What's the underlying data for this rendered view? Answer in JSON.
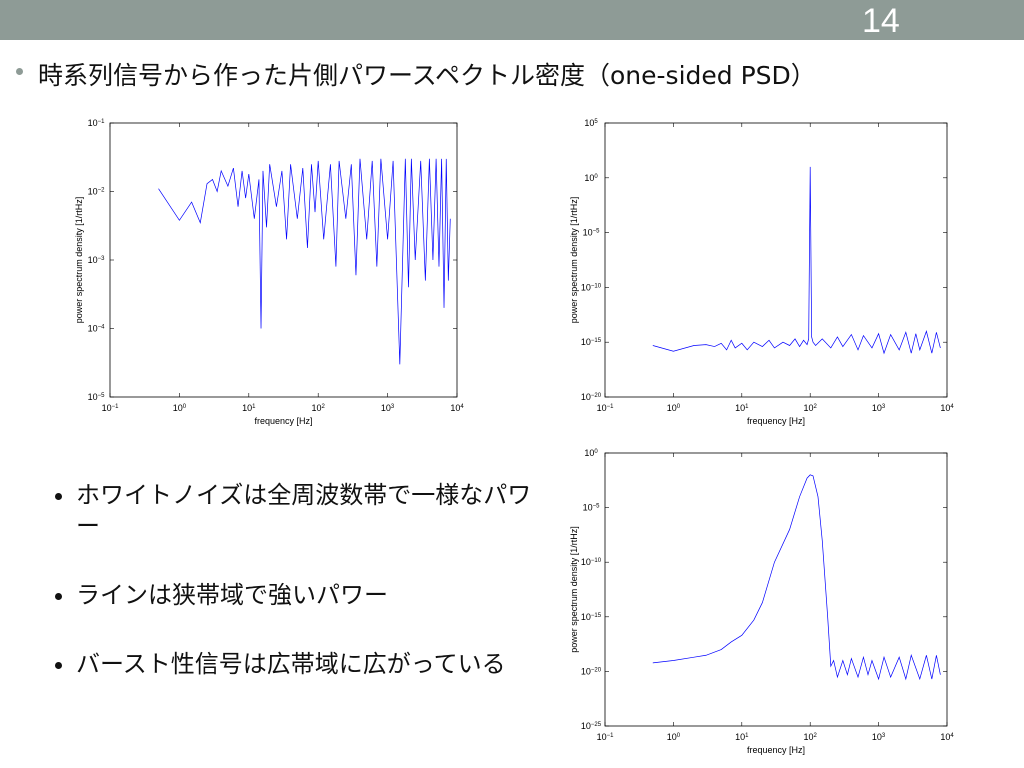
{
  "slide_number": "14",
  "title": "時系列信号から作った片側パワースペクトル密度（one-sided PSD）",
  "bullets": [
    "ホワイトノイズは全周波数帯で一様なパワー",
    "ラインは狭帯域で強いパワー",
    "バースト性信号は広帯域に広がっている"
  ],
  "chart_data": [
    {
      "type": "line",
      "xlabel": "frequency [Hz]",
      "ylabel": "power spectrum density [1/rtHz]",
      "log_x": true,
      "log_y": true,
      "color": "#0000ff",
      "xlim": [
        0.1,
        10000
      ],
      "xticks": [
        {
          "value": 0.1,
          "label": "10",
          "exponent": "−1"
        },
        {
          "value": 1,
          "label": "10",
          "exponent": "0"
        },
        {
          "value": 10,
          "label": "10",
          "exponent": "1"
        },
        {
          "value": 100,
          "label": "10",
          "exponent": "2"
        },
        {
          "value": 1000,
          "label": "10",
          "exponent": "3"
        },
        {
          "value": 10000,
          "label": "10",
          "exponent": "4"
        }
      ],
      "ylim": [
        1e-05,
        0.1
      ],
      "yticks": [
        {
          "value": 1e-05,
          "label": "10",
          "exponent": "−5"
        },
        {
          "value": 0.0001,
          "label": "10",
          "exponent": "−4"
        },
        {
          "value": 0.001,
          "label": "10",
          "exponent": "−3"
        },
        {
          "value": 0.01,
          "label": "10",
          "exponent": "−2"
        },
        {
          "value": 0.1,
          "label": "10",
          "exponent": "−1"
        }
      ],
      "x": [
        0.5,
        1,
        1.5,
        2,
        2.5,
        3,
        3.5,
        4,
        5,
        6,
        7,
        8,
        9,
        10,
        12,
        14,
        15,
        16,
        18,
        20,
        25,
        30,
        35,
        40,
        50,
        60,
        70,
        80,
        90,
        100,
        120,
        150,
        180,
        200,
        250,
        300,
        350,
        400,
        500,
        600,
        700,
        800,
        1000,
        1200,
        1500,
        1800,
        2000,
        2200,
        2500,
        3000,
        3500,
        4000,
        4500,
        5000,
        5500,
        6000,
        6500,
        7000,
        7500,
        8000
      ],
      "values": [
        0.011,
        0.0038,
        0.007,
        0.0035,
        0.013,
        0.015,
        0.01,
        0.02,
        0.012,
        0.022,
        0.006,
        0.02,
        0.008,
        0.018,
        0.004,
        0.015,
        0.0001,
        0.02,
        0.003,
        0.025,
        0.006,
        0.02,
        0.002,
        0.025,
        0.004,
        0.022,
        0.0015,
        0.025,
        0.005,
        0.028,
        0.002,
        0.025,
        0.0008,
        0.028,
        0.004,
        0.025,
        0.0006,
        0.03,
        0.002,
        0.028,
        0.0008,
        0.03,
        0.002,
        0.028,
        3e-05,
        0.03,
        0.0004,
        0.03,
        0.001,
        0.028,
        0.0005,
        0.03,
        0.001,
        0.03,
        0.0008,
        0.03,
        0.0002,
        0.03,
        0.0005,
        0.004
      ]
    },
    {
      "type": "line",
      "xlabel": "frequency [Hz]",
      "ylabel": "power spectrum density [1/rtHz]",
      "log_x": true,
      "log_y": true,
      "color": "#0000ff",
      "xlim": [
        0.1,
        10000
      ],
      "xticks": [
        {
          "value": 0.1,
          "label": "10",
          "exponent": "−1"
        },
        {
          "value": 1,
          "label": "10",
          "exponent": "0"
        },
        {
          "value": 10,
          "label": "10",
          "exponent": "1"
        },
        {
          "value": 100,
          "label": "10",
          "exponent": "2"
        },
        {
          "value": 1000,
          "label": "10",
          "exponent": "3"
        },
        {
          "value": 10000,
          "label": "10",
          "exponent": "4"
        }
      ],
      "ylim": [
        1e-20,
        100000
      ],
      "yticks": [
        {
          "value": 1e-20,
          "label": "10",
          "exponent": "−20"
        },
        {
          "value": 1e-15,
          "label": "10",
          "exponent": "−15"
        },
        {
          "value": 1e-10,
          "label": "10",
          "exponent": "−10"
        },
        {
          "value": 1e-05,
          "label": "10",
          "exponent": "−5"
        },
        {
          "value": 1,
          "label": "10",
          "exponent": "0"
        },
        {
          "value": 100000,
          "label": "10",
          "exponent": "5"
        }
      ],
      "x": [
        0.5,
        1,
        2,
        3,
        4,
        5,
        6,
        7,
        8,
        10,
        12,
        15,
        20,
        25,
        30,
        40,
        50,
        60,
        70,
        80,
        90,
        95,
        100,
        105,
        110,
        120,
        150,
        200,
        250,
        300,
        400,
        500,
        600,
        800,
        1000,
        1200,
        1500,
        2000,
        2500,
        3000,
        3500,
        4000,
        5000,
        6000,
        7000,
        8000
      ],
      "values": [
        5e-16,
        1.5e-16,
        5e-16,
        6e-16,
        4e-16,
        8e-16,
        2e-16,
        1.5e-15,
        3e-16,
        8e-16,
        2e-16,
        1e-15,
        4e-16,
        1.5e-15,
        3e-16,
        1e-15,
        5e-16,
        2e-15,
        4e-16,
        1.5e-15,
        6e-16,
        2e-15,
        10,
        3e-15,
        1e-15,
        5e-16,
        2e-15,
        3e-16,
        3e-15,
        4e-16,
        5e-15,
        2e-16,
        4e-15,
        3e-16,
        6e-15,
        1e-16,
        5e-15,
        2e-16,
        8e-15,
        1e-16,
        6e-15,
        2e-16,
        1e-14,
        1e-16,
        8e-15,
        3e-16
      ]
    },
    {
      "type": "line",
      "xlabel": "frequency [Hz]",
      "ylabel": "power spectrum density [1/rtHz]",
      "log_x": true,
      "log_y": true,
      "color": "#0000ff",
      "xlim": [
        0.1,
        10000
      ],
      "xticks": [
        {
          "value": 0.1,
          "label": "10",
          "exponent": "−1"
        },
        {
          "value": 1,
          "label": "10",
          "exponent": "0"
        },
        {
          "value": 10,
          "label": "10",
          "exponent": "1"
        },
        {
          "value": 100,
          "label": "10",
          "exponent": "2"
        },
        {
          "value": 1000,
          "label": "10",
          "exponent": "3"
        },
        {
          "value": 10000,
          "label": "10",
          "exponent": "4"
        }
      ],
      "ylim": [
        1e-25,
        1
      ],
      "yticks": [
        {
          "value": 1e-25,
          "label": "10",
          "exponent": "−25"
        },
        {
          "value": 1e-20,
          "label": "10",
          "exponent": "−20"
        },
        {
          "value": 1e-15,
          "label": "10",
          "exponent": "−15"
        },
        {
          "value": 1e-10,
          "label": "10",
          "exponent": "−10"
        },
        {
          "value": 1e-05,
          "label": "10",
          "exponent": "−5"
        },
        {
          "value": 1,
          "label": "10",
          "exponent": "0"
        }
      ],
      "x": [
        0.5,
        1,
        2,
        3,
        5,
        7,
        10,
        15,
        20,
        30,
        50,
        70,
        90,
        100,
        110,
        130,
        150,
        180,
        200,
        220,
        250,
        300,
        350,
        400,
        500,
        600,
        700,
        800,
        1000,
        1200,
        1500,
        2000,
        2500,
        3000,
        4000,
        5000,
        6000,
        7000,
        8000
      ],
      "values": [
        6e-20,
        1e-19,
        2e-19,
        3e-19,
        1e-18,
        5e-18,
        2e-17,
        5e-16,
        2e-14,
        1e-10,
        1e-07,
        0.0001,
        0.005,
        0.01,
        0.008,
        0.0001,
        1e-08,
        1e-15,
        3e-20,
        1e-19,
        3e-21,
        1e-19,
        5e-21,
        1.5e-19,
        3e-21,
        2e-19,
        5e-21,
        1e-19,
        2e-21,
        2e-19,
        3e-21,
        2e-19,
        2e-21,
        3e-19,
        2e-21,
        3e-19,
        2e-21,
        3e-19,
        5e-21
      ]
    }
  ]
}
